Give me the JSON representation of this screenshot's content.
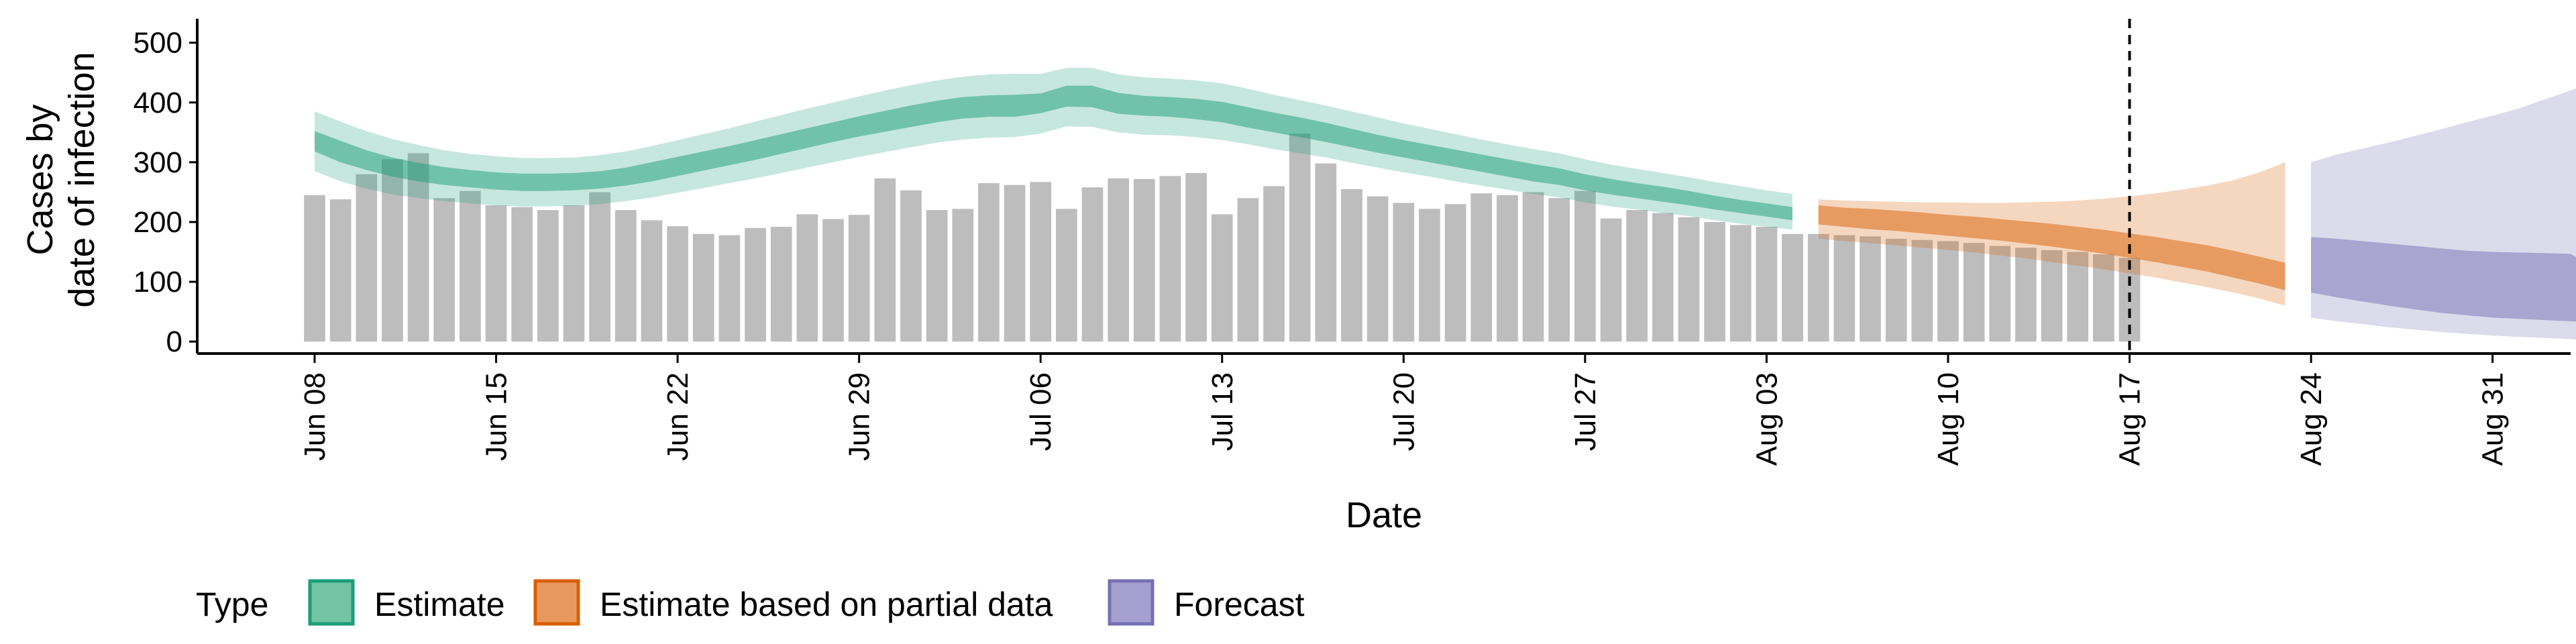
{
  "chart_data": {
    "type": "bar",
    "title": "",
    "xlabel": "Date",
    "ylabel_lines": [
      "Cases by",
      "date of infection"
    ],
    "ylim": [
      -20,
      540
    ],
    "yticks": [
      0,
      100,
      200,
      300,
      400,
      500
    ],
    "x_start": "Jun 08",
    "x_tick_days": [
      0,
      7,
      14,
      21,
      28,
      35,
      42,
      49,
      56,
      63,
      70,
      77,
      84
    ],
    "x_tick_labels": [
      "Jun 08",
      "Jun 15",
      "Jun 22",
      "Jun 29",
      "Jul 06",
      "Jul 13",
      "Jul 20",
      "Jul 27",
      "Aug 03",
      "Aug 10",
      "Aug 17",
      "Aug 24",
      "Aug 31"
    ],
    "grid": false,
    "vline": {
      "date": "Aug 17",
      "style": "dashed"
    },
    "bars": {
      "color": "#bdbdbd",
      "values": [
        245,
        238,
        280,
        305,
        315,
        240,
        252,
        228,
        225,
        220,
        228,
        250,
        220,
        203,
        193,
        180,
        178,
        190,
        192,
        213,
        205,
        212,
        273,
        253,
        220,
        222,
        265,
        262,
        267,
        222,
        258,
        273,
        272,
        277,
        282,
        213,
        240,
        260,
        348,
        298,
        255,
        243,
        232,
        222,
        230,
        248,
        245,
        250,
        240,
        252,
        206,
        220,
        215,
        208,
        200,
        195,
        192,
        180,
        180,
        178,
        176,
        172,
        170,
        168,
        165,
        160,
        157,
        153,
        150,
        146,
        140
      ]
    },
    "legend": {
      "title": "Type",
      "position": "bottom",
      "items": [
        {
          "label": "Estimate",
          "fill": "#73c3a5",
          "stroke": "#1b9e77"
        },
        {
          "label": "Estimate based on partial data",
          "fill": "#e8995f",
          "stroke": "#d95f02"
        },
        {
          "label": "Forecast",
          "fill": "#a6a0d0",
          "stroke": "#7570b3"
        }
      ]
    },
    "series": [
      {
        "name": "Estimate",
        "color": "#1b9e77",
        "start_day": 0,
        "median": [
          335,
          318,
          303,
          292,
          283,
          277,
          272,
          268,
          266,
          266,
          267,
          270,
          276,
          284,
          293,
          302,
          311,
          320,
          330,
          340,
          350,
          360,
          368,
          377,
          385,
          391,
          394,
          394,
          398,
          411,
          410,
          398,
          394,
          392,
          389,
          384,
          375,
          366,
          358,
          350,
          340,
          330,
          322,
          314,
          306,
          298,
          290,
          282,
          276,
          266,
          258,
          252,
          246,
          240,
          232,
          226,
          220,
          214
        ],
        "inner_lo": [
          318,
          300,
          287,
          276,
          268,
          262,
          258,
          254,
          252,
          252,
          253,
          256,
          261,
          268,
          277,
          286,
          295,
          304,
          314,
          324,
          334,
          343,
          351,
          359,
          367,
          373,
          376,
          376,
          382,
          393,
          392,
          381,
          378,
          376,
          372,
          367,
          358,
          350,
          342,
          334,
          325,
          316,
          308,
          300,
          292,
          284,
          276,
          268,
          262,
          253,
          246,
          240,
          234,
          228,
          221,
          215,
          209,
          203
        ],
        "inner_hi": [
          352,
          336,
          320,
          308,
          299,
          292,
          287,
          283,
          281,
          281,
          282,
          285,
          291,
          300,
          309,
          318,
          327,
          337,
          347,
          357,
          367,
          377,
          386,
          395,
          403,
          409,
          412,
          413,
          415,
          428,
          428,
          416,
          411,
          409,
          406,
          401,
          392,
          383,
          375,
          366,
          356,
          346,
          337,
          329,
          321,
          313,
          305,
          297,
          290,
          280,
          272,
          265,
          259,
          252,
          244,
          237,
          231,
          225
        ],
        "outer_lo": [
          285,
          268,
          256,
          246,
          240,
          235,
          231,
          228,
          226,
          226,
          227,
          230,
          235,
          241,
          249,
          257,
          265,
          273,
          282,
          291,
          300,
          309,
          317,
          325,
          333,
          338,
          341,
          342,
          348,
          360,
          359,
          350,
          346,
          345,
          342,
          337,
          330,
          322,
          315,
          308,
          299,
          291,
          283,
          276,
          268,
          261,
          254,
          247,
          241,
          233,
          226,
          221,
          215,
          210,
          203,
          197,
          192,
          187
        ],
        "outer_hi": [
          385,
          368,
          352,
          339,
          329,
          320,
          314,
          310,
          307,
          307,
          308,
          312,
          318,
          327,
          337,
          347,
          357,
          368,
          379,
          390,
          400,
          410,
          420,
          429,
          437,
          443,
          447,
          448,
          448,
          458,
          458,
          447,
          442,
          440,
          437,
          432,
          423,
          413,
          404,
          395,
          385,
          375,
          365,
          356,
          347,
          338,
          330,
          322,
          315,
          305,
          296,
          289,
          282,
          275,
          267,
          260,
          253,
          247
        ]
      },
      {
        "name": "Estimate based on partial data",
        "color": "#d95f02",
        "start_day": 58,
        "median": [
          212,
          208,
          205,
          202,
          198,
          195,
          191,
          187,
          182,
          177,
          172,
          166,
          159,
          152,
          144,
          136,
          126,
          115,
          103
        ],
        "inner_lo": [
          196,
          192,
          188,
          185,
          181,
          177,
          173,
          169,
          164,
          159,
          153,
          147,
          140,
          133,
          125,
          117,
          107,
          97,
          86
        ],
        "inner_hi": [
          228,
          224,
          222,
          219,
          216,
          212,
          209,
          205,
          201,
          197,
          192,
          187,
          181,
          175,
          168,
          161,
          152,
          142,
          132
        ],
        "outer_lo": [
          172,
          168,
          165,
          161,
          157,
          153,
          149,
          144,
          139,
          133,
          127,
          121,
          114,
          107,
          99,
          91,
          82,
          72,
          60
        ],
        "outer_hi": [
          238,
          236,
          235,
          234,
          233,
          233,
          232,
          232,
          233,
          234,
          236,
          239,
          243,
          248,
          254,
          261,
          270,
          283,
          300
        ]
      },
      {
        "name": "Forecast",
        "color": "#7570b3",
        "start_day": 77,
        "median": [
          130,
          127,
          124,
          121,
          119,
          117,
          115,
          113,
          111,
          109,
          107,
          105,
          103,
          100,
          98
        ],
        "inner_lo": [
          82,
          74,
          67,
          60,
          54,
          48,
          44,
          40,
          38,
          36,
          34,
          32,
          12,
          9,
          8
        ],
        "inner_hi": [
          175,
          172,
          168,
          164,
          160,
          156,
          152,
          150,
          149,
          148,
          147,
          122,
          119,
          116,
          114
        ],
        "outer_lo": [
          40,
          34,
          29,
          24,
          20,
          16,
          13,
          10,
          8,
          6,
          4,
          1,
          0,
          0,
          0
        ],
        "outer_hi": [
          300,
          313,
          323,
          333,
          344,
          355,
          367,
          378,
          390,
          405,
          420,
          436,
          455,
          478,
          512
        ]
      }
    ]
  }
}
